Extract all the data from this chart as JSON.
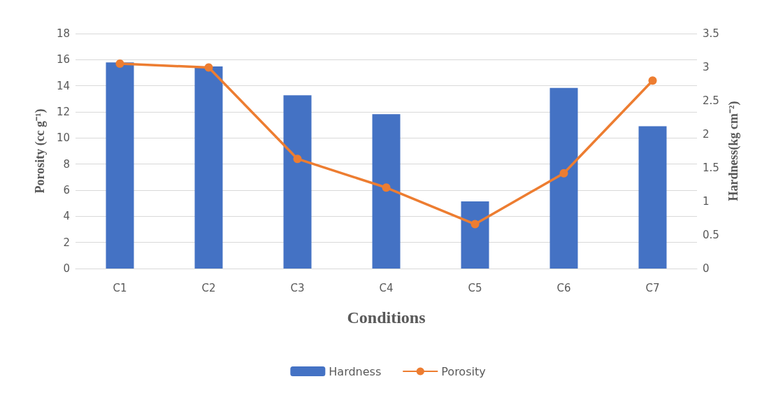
{
  "chart_data": {
    "type": "bar",
    "xlabel": "Conditions",
    "ylabel": "Porosity (cc g⁻¹)",
    "y2label": "Hardness(kg cm⁻²)",
    "categories": [
      "C1",
      "C2",
      "C3",
      "C4",
      "C5",
      "C6",
      "C7"
    ],
    "series": [
      {
        "name": "Hardness",
        "axis": "y2",
        "color": "#4472c4",
        "values": [
          3.07,
          3.01,
          2.58,
          2.3,
          1.0,
          2.69,
          2.12
        ]
      },
      {
        "name": "Porosity",
        "type": "line",
        "axis": "y",
        "color": "#ed7d31",
        "marker": "circle",
        "values": [
          15.7,
          15.4,
          8.4,
          6.2,
          3.4,
          7.3,
          14.4
        ]
      }
    ],
    "ylim": [
      0,
      18
    ],
    "yticks": [
      0,
      2,
      4,
      6,
      8,
      10,
      12,
      14,
      16,
      18
    ],
    "y2lim": [
      0,
      3.5
    ],
    "y2ticks": [
      0,
      0.5,
      1,
      1.5,
      2,
      2.5,
      3,
      3.5
    ],
    "grid": "y",
    "legend": "bottom"
  }
}
